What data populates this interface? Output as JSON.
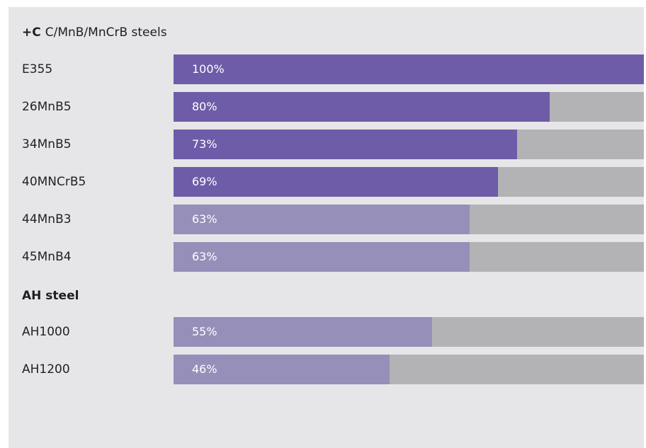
{
  "chart_data": {
    "type": "bar",
    "orientation": "horizontal",
    "title_prefix": "+C",
    "title": "C/MnB/MnCrB steels",
    "groups": [
      {
        "name": "",
        "categories": [
          "E355",
          "26MnB5",
          "34MnB5",
          "40MNCrB5",
          "44MnB3",
          "45MnB4"
        ],
        "values": [
          100,
          80,
          73,
          69,
          63,
          63
        ],
        "value_labels": [
          "100%",
          "80%",
          "73%",
          "69%",
          "63%",
          "63%"
        ],
        "bar_colors": [
          "#6e5ca8",
          "#6e5ca8",
          "#6e5ca8",
          "#6e5ca8",
          "#958fb9",
          "#958fb9"
        ]
      },
      {
        "name": "AH steel",
        "categories": [
          "AH1000",
          "AH1200"
        ],
        "values": [
          55,
          46
        ],
        "value_labels": [
          "55%",
          "46%"
        ],
        "bar_colors": [
          "#958fb9",
          "#958fb9"
        ]
      }
    ],
    "xlim": [
      0,
      100
    ],
    "track_color": "#b3b3b5",
    "background_color": "#e6e6e8",
    "grid": false
  }
}
